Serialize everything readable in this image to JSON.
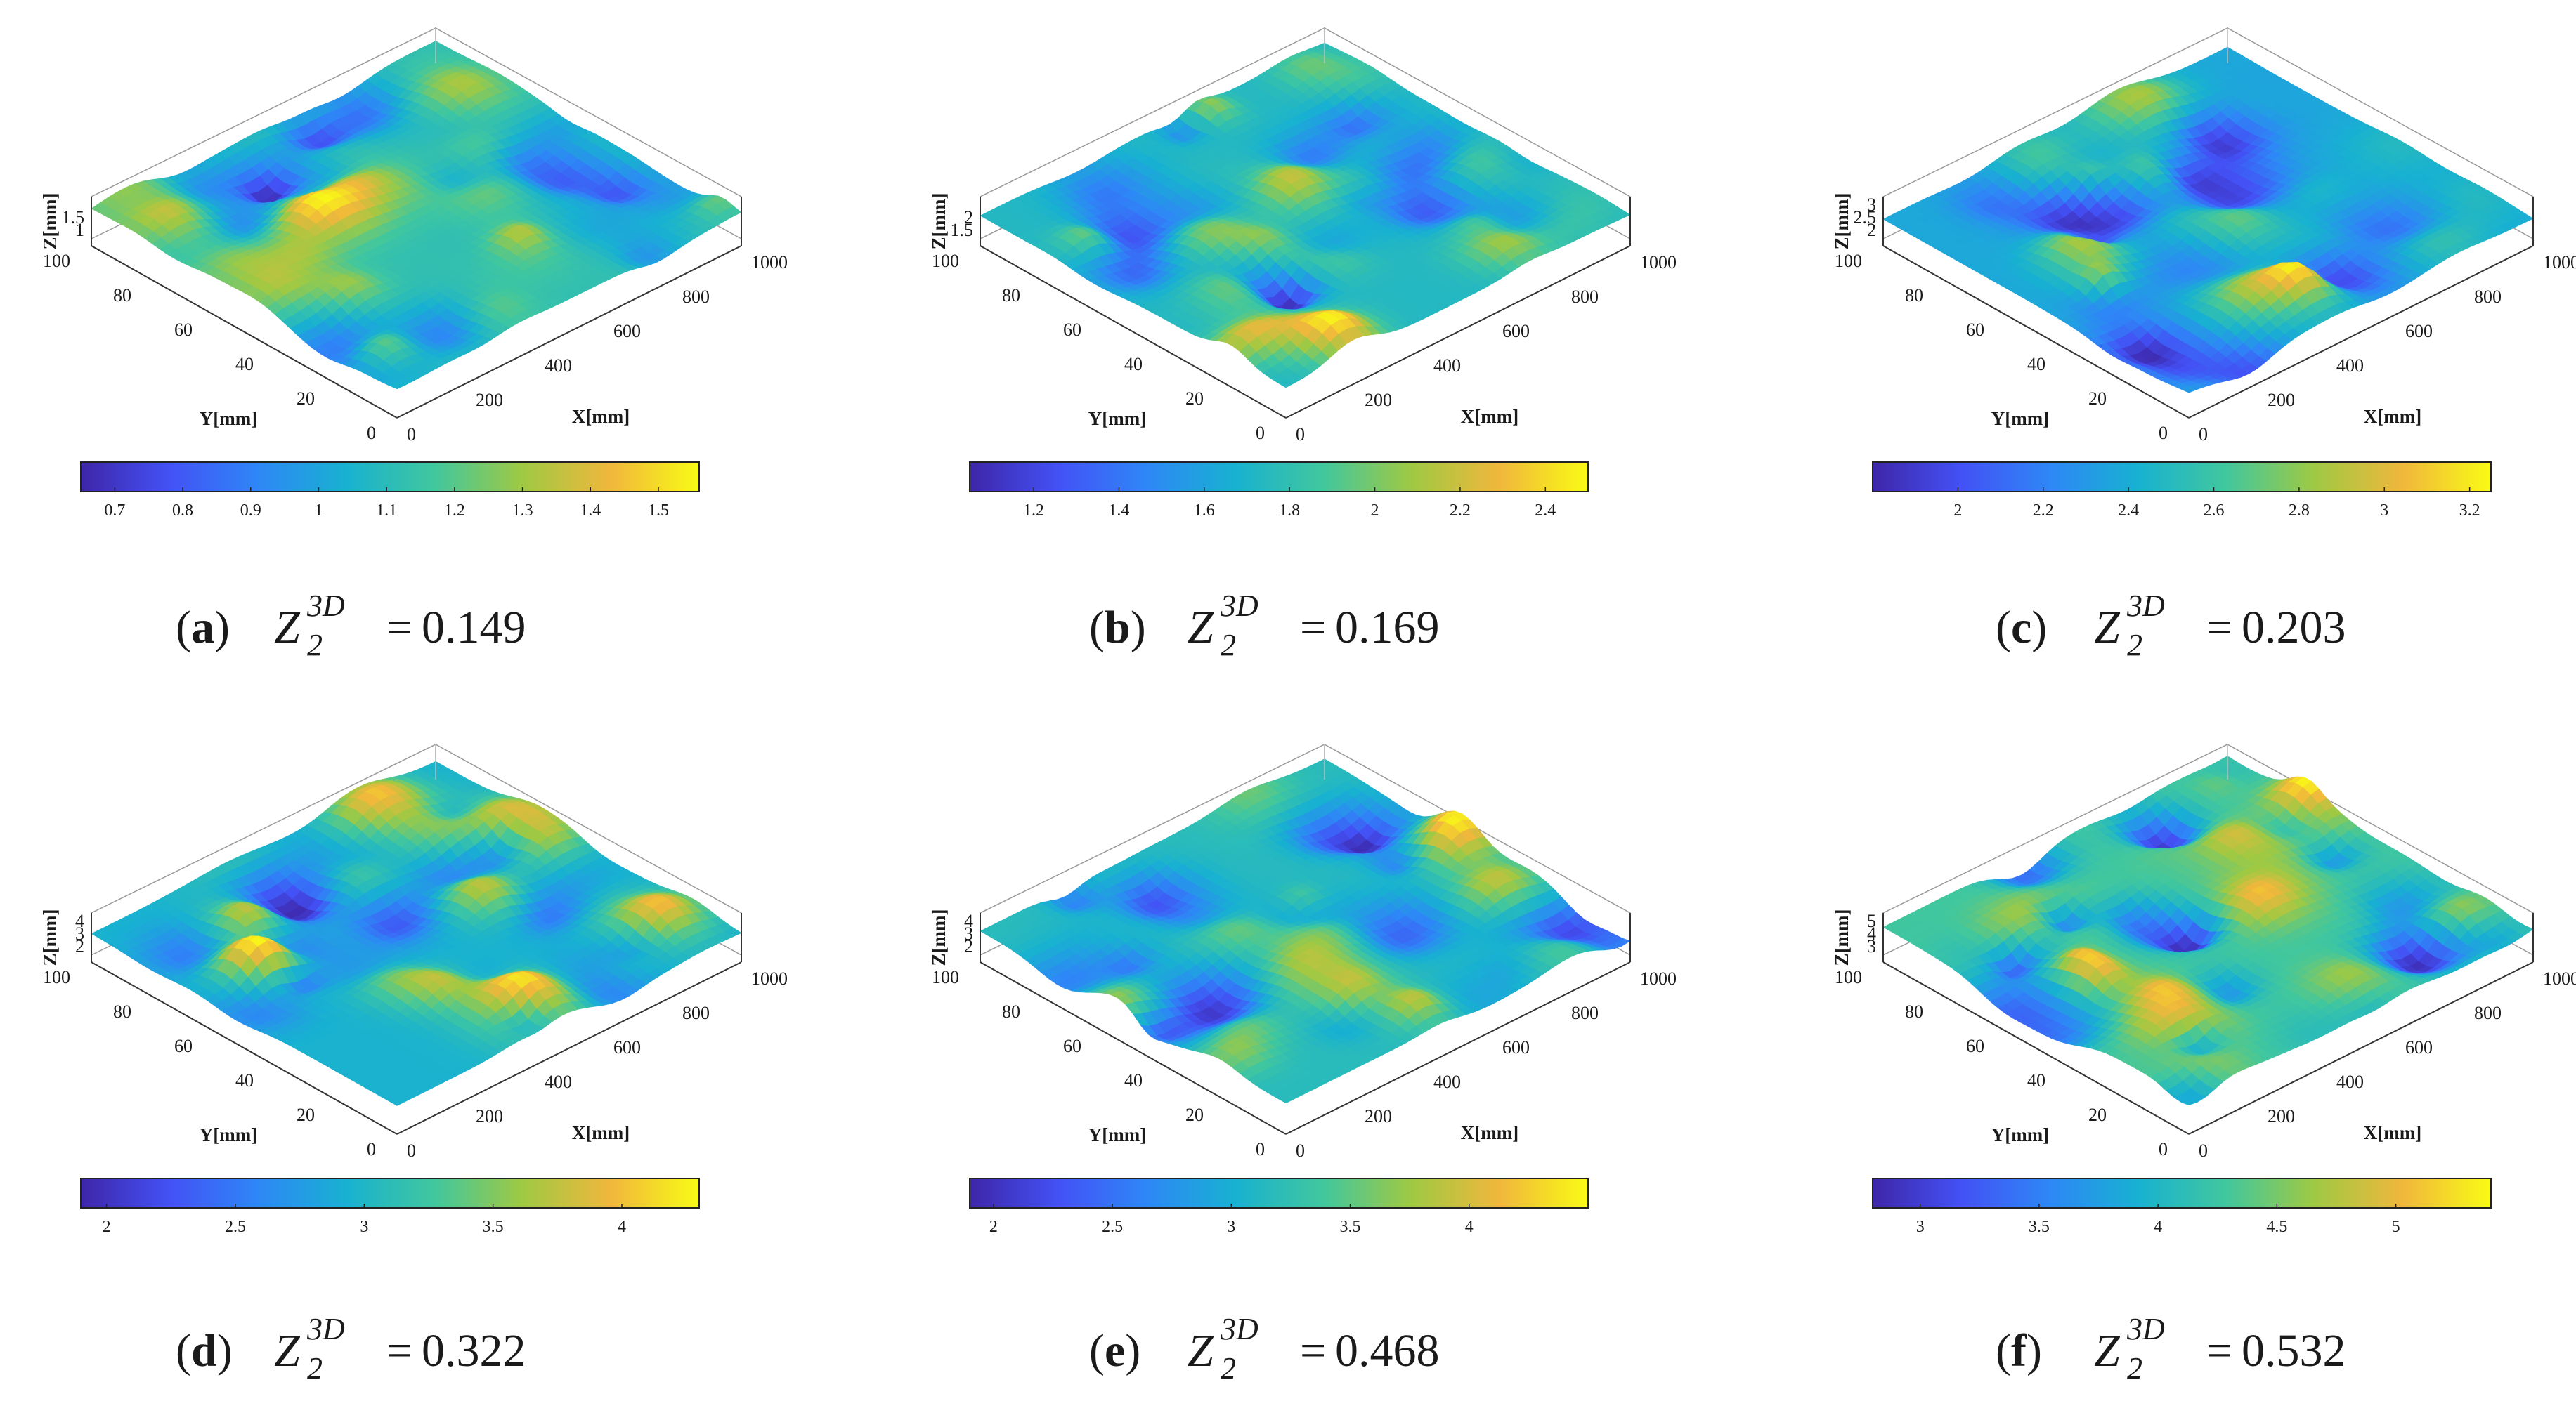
{
  "figure": {
    "layout": "grid 2 rows x 3 columns",
    "colormap": [
      "#3E26A8",
      "#4351F5",
      "#2E87F6",
      "#18B1D1",
      "#41C79E",
      "#9FC943",
      "#F0B73C",
      "#F9FB15"
    ]
  },
  "chart_data": [
    {
      "type": "surface3d",
      "panel": "a",
      "metric_value": "0.149",
      "xlabel": "X[mm]",
      "ylabel": "Y[mm]",
      "zlabel": "Z[mm]",
      "xlim": [
        0,
        1000
      ],
      "ylim": [
        0,
        100
      ],
      "zlim": [
        0.65,
        1.6
      ],
      "x_ticks": [
        "0",
        "200",
        "400",
        "600",
        "800",
        "1000"
      ],
      "y_ticks": [
        "0",
        "20",
        "40",
        "60",
        "80",
        "100"
      ],
      "z_ticks": [
        "1",
        "1.5"
      ],
      "colorbar": {
        "range": [
          0.65,
          1.56
        ],
        "ticks": [
          0.7,
          0.8,
          0.9,
          1,
          1.1,
          1.2,
          1.3,
          1.4,
          1.5
        ],
        "tick_labels": [
          "0.7",
          "0.8",
          "0.9",
          "1",
          "1.1",
          "1.2",
          "1.3",
          "1.4",
          "1.5"
        ]
      },
      "surface_seed": 11
    },
    {
      "type": "surface3d",
      "panel": "b",
      "metric_value": "0.169",
      "xlabel": "X[mm]",
      "ylabel": "Y[mm]",
      "zlabel": "Z[mm]",
      "xlim": [
        0,
        1000
      ],
      "ylim": [
        0,
        100
      ],
      "zlim": [
        1.05,
        2.5
      ],
      "x_ticks": [
        "0",
        "200",
        "400",
        "600",
        "800",
        "1000"
      ],
      "y_ticks": [
        "0",
        "20",
        "40",
        "60",
        "80",
        "100"
      ],
      "z_ticks": [
        "1.5",
        "2"
      ],
      "colorbar": {
        "range": [
          1.05,
          2.5
        ],
        "ticks": [
          1.2,
          1.4,
          1.6,
          1.8,
          2,
          2.2,
          2.4
        ],
        "tick_labels": [
          "1.2",
          "1.4",
          "1.6",
          "1.8",
          "2",
          "2.2",
          "2.4"
        ]
      },
      "surface_seed": 23
    },
    {
      "type": "surface3d",
      "panel": "c",
      "metric_value": "0.203",
      "xlabel": "X[mm]",
      "ylabel": "Y[mm]",
      "zlabel": "Z[mm]",
      "xlim": [
        0,
        1000
      ],
      "ylim": [
        0,
        100
      ],
      "zlim": [
        1.8,
        3.25
      ],
      "x_ticks": [
        "0",
        "200",
        "400",
        "600",
        "800",
        "1000"
      ],
      "y_ticks": [
        "0",
        "20",
        "40",
        "60",
        "80",
        "100"
      ],
      "z_ticks": [
        "2",
        "2.5",
        "3"
      ],
      "colorbar": {
        "range": [
          1.8,
          3.25
        ],
        "ticks": [
          2,
          2.2,
          2.4,
          2.6,
          2.8,
          3,
          3.2
        ],
        "tick_labels": [
          "2",
          "2.2",
          "2.4",
          "2.6",
          "2.8",
          "3",
          "3.2"
        ]
      },
      "surface_seed": 37
    },
    {
      "type": "surface3d",
      "panel": "d",
      "metric_value": "0.322",
      "xlabel": "X[mm]",
      "ylabel": "Y[mm]",
      "zlabel": "Z[mm]",
      "xlim": [
        0,
        1000
      ],
      "ylim": [
        0,
        100
      ],
      "zlim": [
        1.9,
        4.3
      ],
      "x_ticks": [
        "0",
        "200",
        "400",
        "600",
        "800",
        "1000"
      ],
      "y_ticks": [
        "0",
        "20",
        "40",
        "60",
        "80",
        "100"
      ],
      "z_ticks": [
        "2",
        "3",
        "4"
      ],
      "colorbar": {
        "range": [
          1.9,
          4.3
        ],
        "ticks": [
          2,
          2.5,
          3,
          3.5,
          4
        ],
        "tick_labels": [
          "2",
          "2.5",
          "3",
          "3.5",
          "4"
        ]
      },
      "surface_seed": 41
    },
    {
      "type": "surface3d",
      "panel": "e",
      "metric_value": "0.468",
      "xlabel": "X[mm]",
      "ylabel": "Y[mm]",
      "zlabel": "Z[mm]",
      "xlim": [
        0,
        1000
      ],
      "ylim": [
        0,
        100
      ],
      "zlim": [
        1.9,
        4.5
      ],
      "x_ticks": [
        "0",
        "200",
        "400",
        "600",
        "800",
        "1000"
      ],
      "y_ticks": [
        "0",
        "20",
        "40",
        "60",
        "80",
        "100"
      ],
      "z_ticks": [
        "2",
        "3",
        "4"
      ],
      "colorbar": {
        "range": [
          1.9,
          4.5
        ],
        "ticks": [
          2,
          2.5,
          3,
          3.5,
          4
        ],
        "tick_labels": [
          "2",
          "2.5",
          "3",
          "3.5",
          "4"
        ]
      },
      "surface_seed": 53
    },
    {
      "type": "surface3d",
      "panel": "f",
      "metric_value": "0.532",
      "xlabel": "X[mm]",
      "ylabel": "Y[mm]",
      "zlabel": "Z[mm]",
      "xlim": [
        0,
        1000
      ],
      "ylim": [
        0,
        100
      ],
      "zlim": [
        2.8,
        5.4
      ],
      "x_ticks": [
        "0",
        "200",
        "400",
        "600",
        "800",
        "1000"
      ],
      "y_ticks": [
        "0",
        "20",
        "40",
        "60",
        "80",
        "100"
      ],
      "z_ticks": [
        "3",
        "4",
        "5"
      ],
      "colorbar": {
        "range": [
          2.8,
          5.4
        ],
        "ticks": [
          3,
          3.5,
          4,
          4.5,
          5
        ],
        "tick_labels": [
          "3",
          "3.5",
          "4",
          "4.5",
          "5"
        ]
      },
      "surface_seed": 67
    }
  ],
  "captions": [
    {
      "letter": "a",
      "open": "(",
      "close": ")",
      "symbol": "Z",
      "subscript": "2",
      "superscript": "3D",
      "equals": "=",
      "value": "0.149"
    },
    {
      "letter": "b",
      "open": "(",
      "close": ")",
      "symbol": "Z",
      "subscript": "2",
      "superscript": "3D",
      "equals": "=",
      "value": "0.169"
    },
    {
      "letter": "c",
      "open": "(",
      "close": ")",
      "symbol": "Z",
      "subscript": "2",
      "superscript": "3D",
      "equals": "=",
      "value": "0.203"
    },
    {
      "letter": "d",
      "open": "(",
      "close": ")",
      "symbol": "Z",
      "subscript": "2",
      "superscript": "3D",
      "equals": "=",
      "value": "0.322"
    },
    {
      "letter": "e",
      "open": "(",
      "close": ")",
      "symbol": "Z",
      "subscript": "2",
      "superscript": "3D",
      "equals": "=",
      "value": "0.468"
    },
    {
      "letter": "f",
      "open": "(",
      "close": ")",
      "symbol": "Z",
      "subscript": "2",
      "superscript": "3D",
      "equals": "=",
      "value": "0.532"
    }
  ]
}
